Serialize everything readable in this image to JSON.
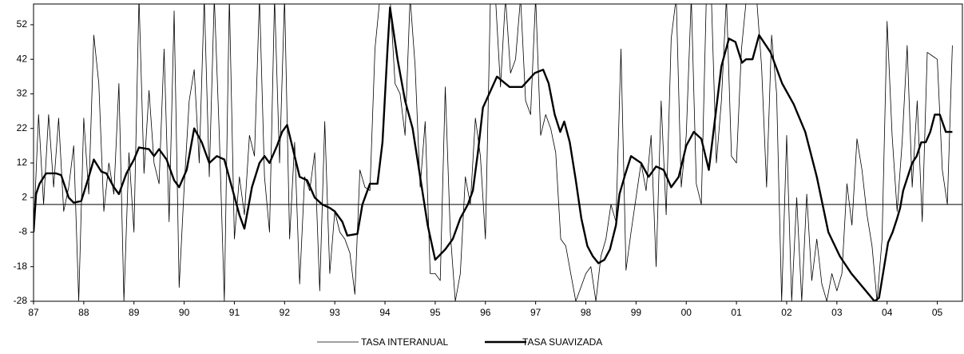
{
  "chart_data": {
    "type": "line",
    "xlim": [
      1987,
      2005.5
    ],
    "xticks": [
      {
        "value": 1987,
        "label": "87"
      },
      {
        "value": 1988,
        "label": "88"
      },
      {
        "value": 1989,
        "label": "89"
      },
      {
        "value": 1990,
        "label": "90"
      },
      {
        "value": 1991,
        "label": "91"
      },
      {
        "value": 1992,
        "label": "92"
      },
      {
        "value": 1993,
        "label": "93"
      },
      {
        "value": 1994,
        "label": "94"
      },
      {
        "value": 1995,
        "label": "95"
      },
      {
        "value": 1996,
        "label": "96"
      },
      {
        "value": 1997,
        "label": "97"
      },
      {
        "value": 1998,
        "label": "98"
      },
      {
        "value": 1999,
        "label": "99"
      },
      {
        "value": 2000,
        "label": "00"
      },
      {
        "value": 2001,
        "label": "01"
      },
      {
        "value": 2002,
        "label": "02"
      },
      {
        "value": 2003,
        "label": "03"
      },
      {
        "value": 2004,
        "label": "04"
      },
      {
        "value": 2005,
        "label": "05"
      }
    ],
    "ylim": [
      -28,
      58
    ],
    "yticks": [
      -28,
      -18,
      -8,
      2,
      12,
      22,
      32,
      42,
      52
    ],
    "series": [
      {
        "name": "TASA INTERANUAL",
        "color": "#000000",
        "line_width": 0.8,
        "x": [
          1987.0,
          1987.1,
          1987.2,
          1987.3,
          1987.4,
          1987.5,
          1987.6,
          1987.7,
          1987.8,
          1987.9,
          1988.0,
          1988.1,
          1988.2,
          1988.3,
          1988.4,
          1988.5,
          1988.6,
          1988.7,
          1988.8,
          1988.9,
          1989.0,
          1989.1,
          1989.2,
          1989.3,
          1989.4,
          1989.5,
          1989.6,
          1989.7,
          1989.8,
          1989.9,
          1990.0,
          1990.1,
          1990.2,
          1990.3,
          1990.4,
          1990.5,
          1990.6,
          1990.7,
          1990.8,
          1990.9,
          1991.0,
          1991.1,
          1991.2,
          1991.3,
          1991.4,
          1991.5,
          1991.6,
          1991.7,
          1991.8,
          1991.9,
          1992.0,
          1992.1,
          1992.2,
          1992.3,
          1992.4,
          1992.5,
          1992.6,
          1992.7,
          1992.8,
          1992.9,
          1993.0,
          1993.1,
          1993.2,
          1993.3,
          1993.4,
          1993.5,
          1993.6,
          1993.7,
          1993.8,
          1993.9,
          1994.0,
          1994.1,
          1994.2,
          1994.3,
          1994.4,
          1994.5,
          1994.6,
          1994.7,
          1994.8,
          1994.9,
          1995.0,
          1995.1,
          1995.2,
          1995.3,
          1995.4,
          1995.5,
          1995.6,
          1995.7,
          1995.8,
          1995.9,
          1996.0,
          1996.1,
          1996.2,
          1996.3,
          1996.4,
          1996.5,
          1996.6,
          1996.7,
          1996.8,
          1996.9,
          1997.0,
          1997.1,
          1997.2,
          1997.3,
          1997.4,
          1997.5,
          1997.6,
          1997.7,
          1997.8,
          1997.9,
          1998.0,
          1998.1,
          1998.2,
          1998.3,
          1998.4,
          1998.5,
          1998.6,
          1998.7,
          1998.8,
          1998.9,
          1999.0,
          1999.1,
          1999.2,
          1999.3,
          1999.4,
          1999.5,
          1999.6,
          1999.7,
          1999.8,
          1999.9,
          2000.0,
          2000.1,
          2000.2,
          2000.3,
          2000.4,
          2000.5,
          2000.6,
          2000.7,
          2000.8,
          2000.9,
          2001.0,
          2001.1,
          2001.2,
          2001.3,
          2001.4,
          2001.5,
          2001.6,
          2001.7,
          2001.8,
          2001.9,
          2002.0,
          2002.1,
          2002.2,
          2002.3,
          2002.4,
          2002.5,
          2002.6,
          2002.7,
          2002.8,
          2002.9,
          2003.0,
          2003.1,
          2003.2,
          2003.3,
          2003.4,
          2003.5,
          2003.6,
          2003.7,
          2003.8,
          2003.9,
          2004.0,
          2004.1,
          2004.2,
          2004.3,
          2004.4,
          2004.5,
          2004.6,
          2004.7,
          2004.8,
          2004.9,
          2005.0,
          2005.1,
          2005.2,
          2005.3
        ],
        "values": [
          -8,
          26,
          0,
          26,
          5,
          25,
          -2,
          5,
          17,
          -28,
          25,
          3,
          49,
          35,
          -2,
          12,
          3,
          35,
          -28,
          15,
          -8,
          60,
          9,
          33,
          12,
          6,
          45,
          -5,
          56,
          -24,
          5,
          30,
          39,
          12,
          60,
          8,
          60,
          20,
          -28,
          60,
          -10,
          8,
          -3,
          20,
          14,
          60,
          8,
          -8,
          60,
          12,
          60,
          -10,
          18,
          -23,
          8,
          4,
          15,
          -25,
          24,
          -20,
          -2,
          -8,
          -10,
          -14,
          -26,
          10,
          5,
          4,
          45,
          60,
          60,
          60,
          35,
          32,
          20,
          60,
          40,
          5,
          24,
          -20,
          -20,
          -22,
          34,
          -8,
          -28,
          -20,
          8,
          0,
          25,
          14,
          -10,
          60,
          60,
          34,
          60,
          38,
          42,
          60,
          30,
          26,
          60,
          20,
          26,
          22,
          15,
          -10,
          -12,
          -20,
          -28,
          -24,
          -20,
          -18,
          -28,
          -15,
          -10,
          0,
          -5,
          45,
          -19,
          -8,
          2,
          12,
          4,
          20,
          -18,
          30,
          -3,
          48,
          60,
          5,
          20,
          60,
          6,
          0,
          60,
          60,
          12,
          30,
          60,
          14,
          12,
          45,
          60,
          60,
          60,
          40,
          5,
          49,
          32,
          -28,
          20,
          -28,
          2,
          -28,
          3,
          -22,
          -10,
          -23,
          -28,
          -20,
          -25,
          -20,
          6,
          -6,
          19,
          10,
          -3,
          -12,
          -28,
          -10,
          53,
          20,
          -2,
          18,
          46,
          5,
          30,
          -5,
          44,
          43,
          42,
          10,
          0,
          46
        ]
      },
      {
        "name": "TASA SUAVIZADA",
        "color": "#000000",
        "line_width": 2.4,
        "x": [
          1987.0,
          1987.05,
          1987.12,
          1987.25,
          1987.45,
          1987.55,
          1987.7,
          1987.8,
          1987.95,
          1988.1,
          1988.2,
          1988.35,
          1988.45,
          1988.6,
          1988.7,
          1988.85,
          1989.0,
          1989.1,
          1989.3,
          1989.4,
          1989.5,
          1989.65,
          1989.8,
          1989.9,
          1990.05,
          1990.2,
          1990.35,
          1990.5,
          1990.65,
          1990.8,
          1990.95,
          1991.1,
          1991.2,
          1991.35,
          1991.5,
          1991.6,
          1991.7,
          1991.85,
          1991.95,
          1992.05,
          1992.2,
          1992.3,
          1992.45,
          1992.6,
          1992.75,
          1992.9,
          1993.0,
          1993.15,
          1993.25,
          1993.45,
          1993.55,
          1993.7,
          1993.85,
          1993.95,
          1994.05,
          1994.1,
          1994.25,
          1994.4,
          1994.55,
          1994.7,
          1994.85,
          1995.0,
          1995.2,
          1995.35,
          1995.5,
          1995.65,
          1995.75,
          1995.85,
          1995.95,
          1996.23,
          1996.48,
          1996.73,
          1996.98,
          1997.15,
          1997.26,
          1997.38,
          1997.49,
          1997.57,
          1997.68,
          1997.8,
          1997.91,
          1998.03,
          1998.14,
          1998.25,
          1998.37,
          1998.48,
          1998.6,
          1998.67,
          1998.79,
          1998.9,
          1999.1,
          1999.25,
          1999.4,
          1999.55,
          1999.7,
          1999.85,
          2000.0,
          2000.15,
          2000.3,
          2000.45,
          2000.55,
          2000.7,
          2000.85,
          2000.98,
          2001.11,
          2001.19,
          2001.32,
          2001.45,
          2001.68,
          2001.91,
          2002.14,
          2002.37,
          2002.6,
          2002.83,
          2003.06,
          2003.29,
          2003.52,
          2003.75,
          2003.84,
          2003.93,
          2004.02,
          2004.11,
          2004.2,
          2004.26,
          2004.32,
          2004.41,
          2004.5,
          2004.59,
          2004.68,
          2004.77,
          2004.86,
          2004.95,
          2005.05,
          2005.17,
          2005.3
        ],
        "values": [
          -8,
          3,
          6,
          9,
          9,
          8.5,
          2,
          0.5,
          1,
          8,
          13,
          9.5,
          9,
          5,
          3,
          9,
          13,
          16.5,
          16,
          14,
          16,
          13,
          7,
          5,
          10,
          22,
          18,
          12,
          14,
          13,
          5,
          -3,
          -7,
          5,
          12,
          14,
          12,
          17,
          21,
          23,
          14,
          8,
          7,
          2,
          0,
          -1,
          -2,
          -5,
          -9,
          -8.5,
          0,
          6,
          6,
          18,
          45,
          57,
          42,
          30,
          22,
          8,
          -6,
          -16,
          -13,
          -10,
          -4,
          0,
          4,
          15,
          28,
          37,
          34,
          34,
          38,
          39,
          35,
          26,
          21,
          24,
          18,
          7,
          -4,
          -12,
          -15,
          -17,
          -16,
          -13,
          -6,
          3,
          9,
          14,
          12,
          8,
          11,
          10,
          5,
          8,
          17,
          21,
          19,
          10,
          22,
          40,
          48,
          47,
          41,
          42,
          42,
          49,
          44,
          35,
          29,
          21,
          8,
          -8,
          -15,
          -20,
          -24,
          -28,
          -27,
          -19,
          -11,
          -8,
          -4,
          -1,
          4,
          8,
          12,
          14,
          18,
          18,
          21,
          26,
          26,
          21,
          21
        ]
      }
    ]
  }
}
